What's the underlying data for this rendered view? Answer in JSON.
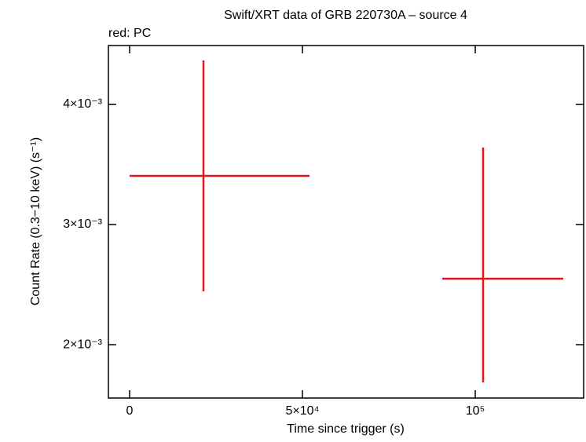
{
  "chart_data": {
    "type": "errorbar",
    "title": "Swift/XRT data of GRB 220730A – source 4",
    "subtitle": "red: PC",
    "x_label": "Time since trigger (s)",
    "y_label": "Count Rate (0.3−10 keV) (s⁻¹)",
    "xlim": [
      -6136,
      131364
    ],
    "ylim": [
      0.001556,
      0.00449
    ],
    "xticks": [
      0,
      {
        "value": 50000,
        "label": "5×10⁴"
      },
      {
        "value": 100000,
        "label": "10⁵"
      }
    ],
    "yticks": [
      {
        "value": 0.002,
        "label": "2×10⁻³"
      },
      {
        "value": 0.003,
        "label": "3×10⁻³"
      },
      {
        "value": 0.004,
        "label": "4×10⁻³"
      }
    ],
    "series": [
      {
        "name": "PC",
        "color": "#e8141c",
        "x": [
          21364,
          102273
        ],
        "xerr_minus": [
          21364,
          11818
        ],
        "xerr_plus": [
          30682,
          23182
        ],
        "values": [
          0.003405,
          0.002549
        ],
        "yerr_minus": [
          0.000961,
          0.000863
        ],
        "yerr_plus": [
          0.000961,
          0.001092
        ]
      }
    ]
  }
}
